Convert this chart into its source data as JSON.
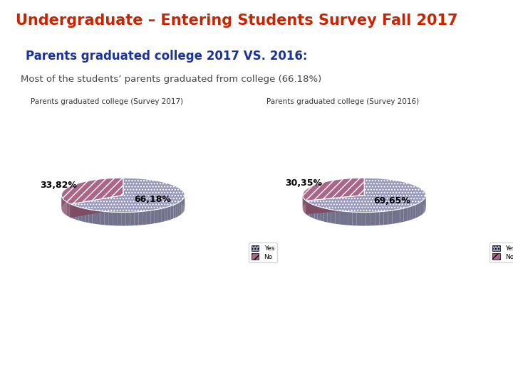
{
  "title": "Undergraduate – Entering Students Survey Fall 2017",
  "subtitle": "Parents graduated college 2017 VS. 2016:",
  "body_text": "Most of the students’ parents graduated from college (66.18%)",
  "chart1_title": "Parents graduated college (Survey 2017)",
  "chart2_title": "Parents graduated college (Survey 2016)",
  "chart1_values": [
    66.18,
    33.82
  ],
  "chart2_values": [
    69.65,
    30.35
  ],
  "chart1_labels": [
    "66,18%",
    "33,82%"
  ],
  "chart2_labels": [
    "69,65%",
    "30,35%"
  ],
  "color_yes": "#9999bb",
  "color_no": "#aa6688",
  "legend_labels": [
    "Yes",
    "No"
  ],
  "title_color": "#cc2200",
  "subtitle_color": "#1a3399",
  "body_color": "#444444",
  "chart_title_color": "#333333",
  "bg_color": "#ffffff",
  "footer_color": "#cc1100",
  "startangle": 90
}
